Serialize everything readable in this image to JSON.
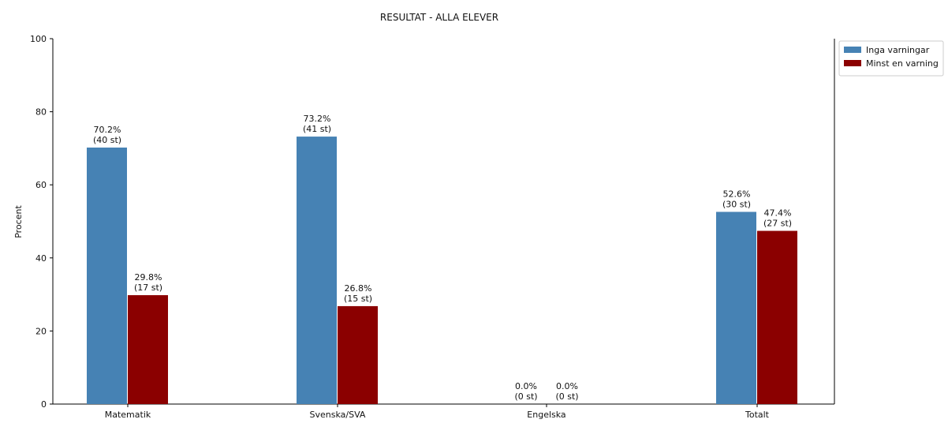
{
  "chart_data": {
    "type": "bar",
    "title": "RESULTAT - ALLA ELEVER",
    "xlabel": "",
    "ylabel": "Procent",
    "ylim": [
      0,
      100
    ],
    "yticks": [
      0,
      20,
      40,
      60,
      80,
      100
    ],
    "categories": [
      "Matematik",
      "Svenska/SVA",
      "Engelska",
      "Totalt"
    ],
    "series": [
      {
        "name": "Inga varningar",
        "color": "#4682b4",
        "values": [
          70.2,
          73.2,
          0.0,
          52.6
        ],
        "labels": [
          [
            "70.2%",
            "(40 st)"
          ],
          [
            "73.2%",
            "(41 st)"
          ],
          [
            "0.0%",
            "(0 st)"
          ],
          [
            "52.6%",
            "(30 st)"
          ]
        ]
      },
      {
        "name": "Minst en varning",
        "color": "#8b0000",
        "values": [
          29.8,
          26.8,
          0.0,
          47.4
        ],
        "labels": [
          [
            "29.8%",
            "(17 st)"
          ],
          [
            "26.8%",
            "(15 st)"
          ],
          [
            "0.0%",
            "(0 st)"
          ],
          [
            "47.4%",
            "(27 st)"
          ]
        ]
      }
    ],
    "grid": false,
    "legend_position": "top-right-outside"
  }
}
